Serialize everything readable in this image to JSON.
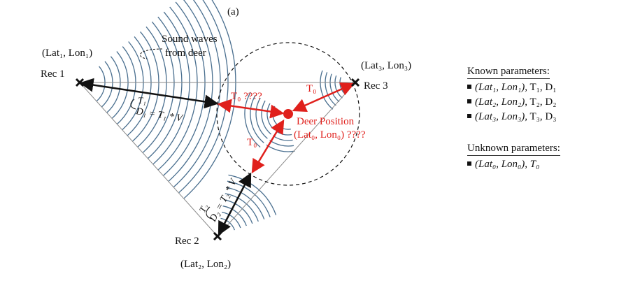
{
  "figure": {
    "panel_label": "(a)",
    "receivers": [
      {
        "label": "Rec 1",
        "coord": "(Lat₁, Lon₁)"
      },
      {
        "label": "Rec 2",
        "coord": "(Lat₂, Lon₂)"
      },
      {
        "label": "Rec 3",
        "coord": "(Lat₃, Lon₃)"
      }
    ],
    "sound_waves_label_line1": "Sound waves",
    "sound_waves_label_line2": "from deer",
    "t1_label": "T₁",
    "d1_label": "D₁ = T₁ * V",
    "t2_label": "T₂",
    "d2_label": "D₂ = T₂ * V",
    "t0_label_unknown": "T₀ ????",
    "t0_label_rec3": "T₀",
    "t0_label_rec2": "T₀",
    "deer_label_line1": "Deer Position",
    "deer_label_line2": "(Lat₀, Lon₀) ????",
    "colors": {
      "wave": "#4a6f8f",
      "unknown": "#e0201c",
      "known": "#111111",
      "triangle": "#8a8a8a"
    }
  },
  "known_parameters": {
    "title": "Known parameters:",
    "items": [
      {
        "vars": "(Lat₁, Lon₁),",
        "rest": " T₁, D₁"
      },
      {
        "vars": "(Lat₂, Lon₂),",
        "rest": " T₂, D₂"
      },
      {
        "vars": "(Lat₃, Lon₃),",
        "rest": " T₃, D₃"
      }
    ]
  },
  "unknown_parameters": {
    "title": "Unknown parameters:",
    "items": [
      {
        "vars": "(Lat₀, Lon₀), T₀",
        "rest": ""
      }
    ]
  }
}
